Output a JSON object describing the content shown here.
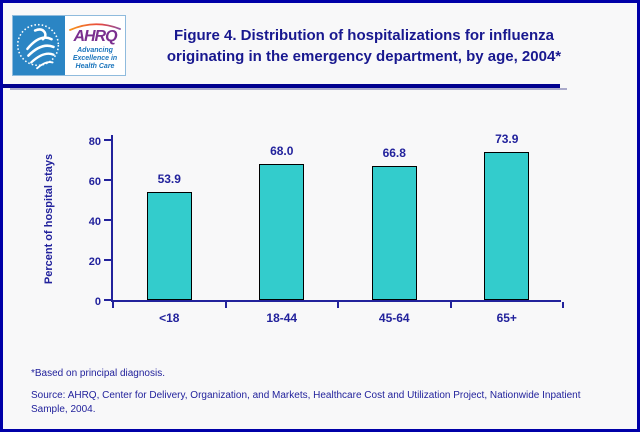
{
  "page": {
    "background": "#F8F8F9",
    "border_color": "#0000A8",
    "accent_navy": "#22229C"
  },
  "header": {
    "title_lines": [
      "Figure 4. Distribution of hospitalizations for influenza",
      "originating in the emergency department, by age, 2004*"
    ],
    "logo": {
      "hhs_seal": "hhs-department-seal",
      "ahrq_wordmark": "AHRQ",
      "tagline_lines": [
        "Advancing",
        "Excellence in",
        "Health Care"
      ]
    }
  },
  "chart_data": {
    "type": "bar",
    "title": "Figure 4. Distribution of hospitalizations for influenza originating in the emergency department, by age, 2004*",
    "categories": [
      "<18",
      "18-44",
      "45-64",
      "65+"
    ],
    "values": [
      53.9,
      68.0,
      66.8,
      73.9
    ],
    "value_labels": [
      "53.9",
      "68.0",
      "66.8",
      "73.9"
    ],
    "xlabel": "",
    "ylabel": "Percent of hospital stays",
    "ylim": [
      0,
      80
    ],
    "yticks": [
      0,
      20,
      40,
      60,
      80
    ],
    "grid": false,
    "legend": "none",
    "bar_color": "#33CCCC",
    "bar_border_color": "#000000",
    "axis_color": "#22229C",
    "label_color": "#22229C"
  },
  "footer": {
    "note": "*Based on principal diagnosis.",
    "source": "Source: AHRQ, Center for Delivery, Organization, and Markets, Healthcare Cost and Utilization Project, Nationwide Inpatient Sample, 2004."
  }
}
